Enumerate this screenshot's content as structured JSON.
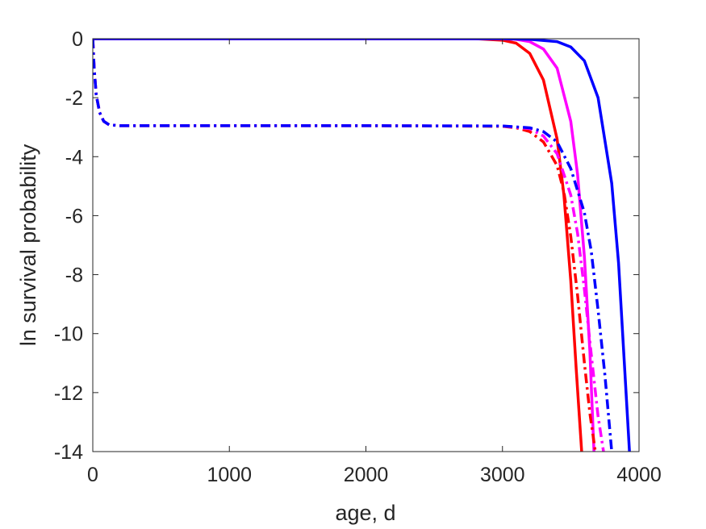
{
  "chart_data": {
    "type": "line",
    "title": "",
    "xlabel": "age, d",
    "ylabel": "ln survival probability",
    "xlim": [
      0,
      4000
    ],
    "ylim": [
      -14,
      0
    ],
    "xticks": [
      0,
      1000,
      2000,
      3000,
      4000
    ],
    "yticks": [
      0,
      -2,
      -4,
      -6,
      -8,
      -10,
      -12,
      -14
    ],
    "xtick_labels": [
      "0",
      "1000",
      "2000",
      "3000",
      "4000"
    ],
    "ytick_labels": [
      "0",
      "-2",
      "-4",
      "-6",
      "-8",
      "-10",
      "-12",
      "-14"
    ],
    "grid": false,
    "legend": "none",
    "series": [
      {
        "color": "#ff0000",
        "style": "solid",
        "x": [
          0,
          1000,
          2000,
          2800,
          3000,
          3100,
          3200,
          3300,
          3400,
          3450,
          3500,
          3540,
          3580
        ],
        "y": [
          0,
          0,
          0,
          0,
          -0.05,
          -0.15,
          -0.5,
          -1.4,
          -3.4,
          -5.3,
          -8.2,
          -11.2,
          -14
        ]
      },
      {
        "color": "#ff00ff",
        "style": "solid",
        "x": [
          0,
          1000,
          2000,
          3000,
          3100,
          3200,
          3300,
          3400,
          3500,
          3550,
          3600,
          3640,
          3670
        ],
        "y": [
          0,
          0,
          0,
          0,
          -0.02,
          -0.1,
          -0.35,
          -1.0,
          -2.8,
          -4.6,
          -7.4,
          -10.6,
          -14
        ]
      },
      {
        "color": "#0000ff",
        "style": "solid",
        "x": [
          0,
          1000,
          2000,
          3000,
          3200,
          3400,
          3500,
          3600,
          3700,
          3800,
          3850,
          3900,
          3930
        ],
        "y": [
          0,
          0,
          0,
          0,
          -0.02,
          -0.1,
          -0.28,
          -0.75,
          -2.0,
          -4.9,
          -7.6,
          -11.6,
          -14
        ]
      },
      {
        "color": "#ff0000",
        "style": "dashdot",
        "x": [
          0,
          10,
          25,
          50,
          80,
          120,
          200,
          1000,
          2000,
          3000,
          3100,
          3200,
          3300,
          3400,
          3450,
          3500,
          3550,
          3600,
          3640,
          3680
        ],
        "y": [
          0,
          -1.0,
          -1.9,
          -2.5,
          -2.8,
          -2.92,
          -2.95,
          -2.95,
          -2.95,
          -2.97,
          -3.02,
          -3.15,
          -3.5,
          -4.3,
          -5.2,
          -6.7,
          -8.7,
          -11.0,
          -12.7,
          -14
        ]
      },
      {
        "color": "#ff00ff",
        "style": "dashdot",
        "x": [
          0,
          10,
          25,
          50,
          80,
          120,
          200,
          1000,
          2000,
          3000,
          3200,
          3300,
          3400,
          3500,
          3550,
          3600,
          3650,
          3700,
          3740
        ],
        "y": [
          0,
          -1.0,
          -1.9,
          -2.5,
          -2.8,
          -2.92,
          -2.95,
          -2.95,
          -2.95,
          -2.96,
          -3.05,
          -3.3,
          -3.9,
          -5.3,
          -6.6,
          -8.5,
          -10.7,
          -12.8,
          -14
        ]
      },
      {
        "color": "#0000ff",
        "style": "dashdot",
        "x": [
          0,
          10,
          25,
          50,
          80,
          120,
          200,
          1000,
          2000,
          3000,
          3200,
          3300,
          3400,
          3500,
          3600,
          3650,
          3700,
          3750,
          3800
        ],
        "y": [
          0,
          -1.0,
          -1.9,
          -2.5,
          -2.8,
          -2.92,
          -2.95,
          -2.95,
          -2.95,
          -2.96,
          -3.02,
          -3.15,
          -3.5,
          -4.4,
          -5.9,
          -7.2,
          -9.2,
          -11.4,
          -14
        ]
      }
    ]
  }
}
